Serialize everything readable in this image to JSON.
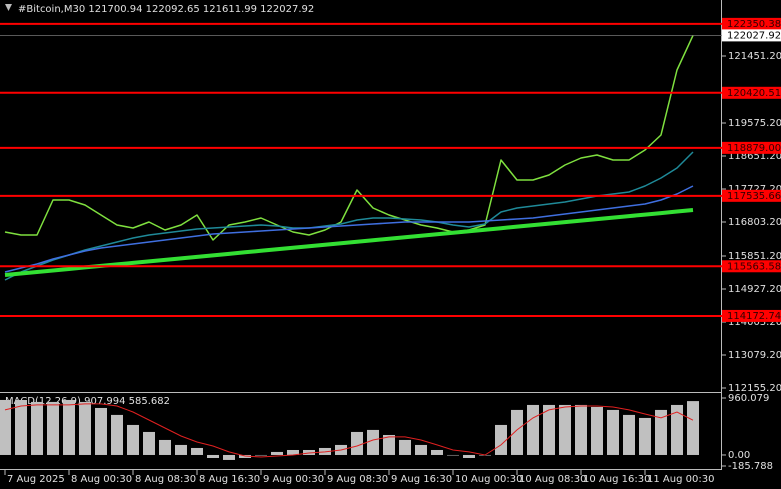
{
  "header": {
    "symbol_info": "#Bitcoin,M30  121700.94 122092.65 121611.99 122027.92"
  },
  "chart_data": [
    {
      "type": "line",
      "categories": [
        "7 Aug 2025",
        null,
        null,
        null,
        "8 Aug 00:30",
        null,
        null,
        null,
        "8 Aug 08:30",
        null,
        null,
        null,
        "8 Aug 16:30",
        null,
        null,
        null,
        "9 Aug 00:30",
        null,
        null,
        null,
        "9 Aug 08:30",
        null,
        null,
        null,
        "9 Aug 16:30",
        null,
        null,
        null,
        "10 Aug 00:30",
        null,
        null,
        null,
        "10 Aug 08:30",
        null,
        null,
        null,
        "10 Aug 16:30",
        null,
        null,
        null,
        "11 Aug 00:30",
        null,
        null,
        null
      ],
      "series": [
        {
          "color": "#7fe03f",
          "values": [
            116523,
            116439,
            116439,
            117419,
            117419,
            117279,
            116999,
            116719,
            116635,
            116803,
            116579,
            116719,
            116999,
            116299,
            116719,
            116803,
            116915,
            116719,
            116523,
            116439,
            116579,
            116803,
            117699,
            117195,
            116999,
            116859,
            116719,
            116635,
            116523,
            116579,
            116719,
            118539,
            117979,
            117979,
            118119,
            118399,
            118595,
            118679,
            118539,
            118539,
            118819,
            119239,
            121059,
            122027.92
          ]
        },
        {
          "color": "#1f8a99",
          "values": [
            115179,
            115403,
            115571,
            115739,
            115879,
            116019,
            116131,
            116243,
            116355,
            116439,
            116495,
            116551,
            116607,
            116635,
            116663,
            116691,
            116719,
            116691,
            116635,
            116635,
            116691,
            116747,
            116859,
            116915,
            116915,
            116887,
            116859,
            116803,
            116719,
            116663,
            116747,
            117083,
            117195,
            117251,
            117307,
            117363,
            117447,
            117531,
            117587,
            117643,
            117811,
            118035,
            118315,
            118763
          ]
        },
        {
          "color": "#3f6fe0",
          "values": [
            115403,
            115515,
            115627,
            115767,
            115879,
            115991,
            116075,
            116131,
            116187,
            116243,
            116299,
            116355,
            116411,
            116467,
            116495,
            116523,
            116551,
            116579,
            116607,
            116635,
            116663,
            116691,
            116719,
            116747,
            116775,
            116803,
            116803,
            116803,
            116803,
            116803,
            116831,
            116859,
            116887,
            116915,
            116971,
            117027,
            117083,
            117139,
            117195,
            117251,
            117307,
            117419,
            117587,
            117811
          ]
        },
        {
          "color": "#33e033",
          "width": 4,
          "values": [
            115319,
            115361,
            115404,
            115446,
            115488,
            115531,
            115573,
            115615,
            115657,
            115700,
            115742,
            115784,
            115827,
            115869,
            115911,
            115954,
            115996,
            116038,
            116080,
            116123,
            116165,
            116207,
            116250,
            116292,
            116334,
            116377,
            116419,
            116461,
            116503,
            116546,
            116588,
            116630,
            116673,
            116715,
            116757,
            116800,
            116842,
            116884,
            116926,
            116969,
            117011,
            117053,
            117096,
            117138
          ]
        }
      ],
      "ylim": [
        112043,
        123019
      ],
      "yticks": [
        {
          "value": 112155.2,
          "label": "112155.20"
        },
        {
          "value": 113079.2,
          "label": "113079.20"
        },
        {
          "value": 114003.2,
          "label": "114003.20"
        },
        {
          "value": 114927.2,
          "label": "114927.20"
        },
        {
          "value": 115851.2,
          "label": "115851.20"
        },
        {
          "value": 116803.2,
          "label": "116803.20"
        },
        {
          "value": 117727.2,
          "label": "117727.20"
        },
        {
          "value": 118651.2,
          "label": "118651.20"
        },
        {
          "value": 119575.2,
          "label": "119575.20"
        },
        {
          "value": 121451.2,
          "label": "121451.20"
        }
      ],
      "levels": [
        122350.38,
        120420.51,
        {
          "value": 118879,
          "label": "118879.00"
        },
        117535.66,
        115563.58,
        114172.74
      ],
      "level_color": "#ff0000",
      "current_price": 122027.92
    },
    {
      "type": "macd",
      "title": "MACD(12,26,9) 907.994 585.682",
      "histogram": {
        "color": "#c0c0c0",
        "values": [
          927,
          927,
          894,
          894,
          927,
          894,
          792,
          675,
          506,
          388,
          253,
          169,
          118,
          -51,
          -84,
          -51,
          0,
          51,
          84,
          84,
          118,
          169,
          388,
          422,
          337,
          253,
          169,
          84,
          0,
          -51,
          0,
          506,
          759,
          843,
          843,
          843,
          843,
          809,
          759,
          675,
          624,
          759,
          843,
          907.994
        ]
      },
      "signal": {
        "color": "#e02020",
        "values": [
          759,
          826,
          843,
          843,
          843,
          860,
          860,
          826,
          725,
          590,
          455,
          320,
          219,
          152,
          51,
          -17,
          -34,
          -17,
          0,
          34,
          51,
          84,
          152,
          253,
          304,
          304,
          253,
          169,
          84,
          51,
          0,
          169,
          422,
          624,
          759,
          809,
          826,
          826,
          809,
          759,
          691,
          624,
          725,
          585.682
        ]
      },
      "ylim": [
        -185.788,
        960.079
      ],
      "yticks": [
        -185.788,
        {
          "value": 0,
          "label": "0.00"
        },
        960.079
      ]
    }
  ]
}
